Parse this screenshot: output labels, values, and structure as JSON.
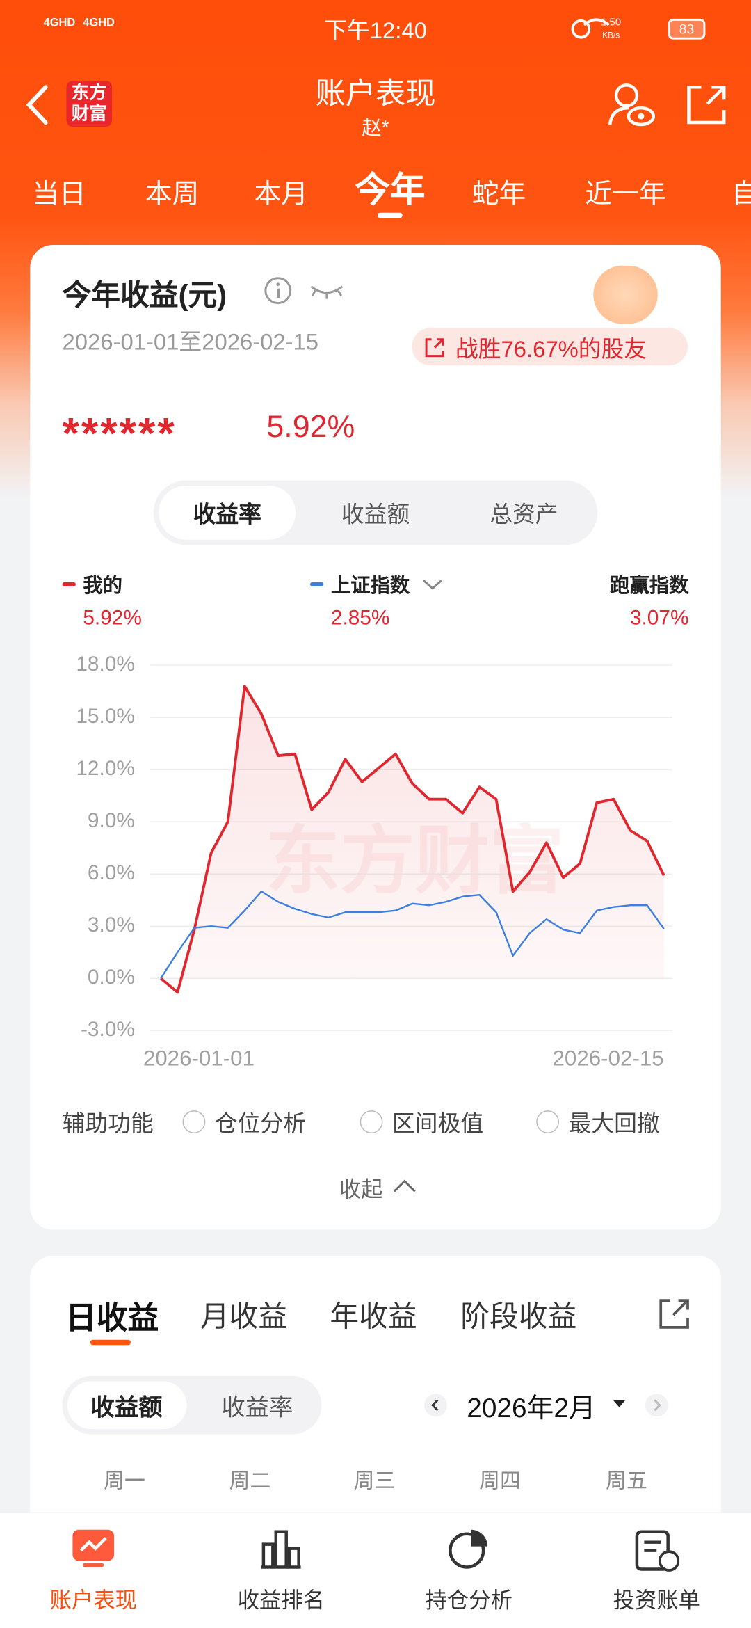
{
  "status_bar": {
    "network": [
      "4GHD",
      "4GHD"
    ],
    "time": "下午12:40",
    "speed": "1.50",
    "speed_unit": "KB/s",
    "battery": "83"
  },
  "header": {
    "logo": "东方财富",
    "title": "账户表现",
    "subtitle": "赵*"
  },
  "period_tabs": [
    "当日",
    "本周",
    "本月",
    "今年",
    "蛇年",
    "近一年",
    "自"
  ],
  "summary": {
    "title": "今年收益(元)",
    "date_range": "2026-01-01至2026-02-15",
    "badge": "战胜76.67%的股友",
    "amount": "******",
    "rate": "5.92%"
  },
  "metric_tabs": [
    "收益率",
    "收益额",
    "总资产"
  ],
  "chart_data": {
    "type": "line",
    "watermark": "东方财富",
    "categories": [
      "2026-01-01",
      null,
      null,
      null,
      null,
      null,
      null,
      null,
      null,
      null,
      null,
      null,
      null,
      null,
      null,
      null,
      null,
      null,
      null,
      null,
      null,
      null,
      null,
      null,
      null,
      null,
      null,
      null,
      null,
      null,
      "2026-02-15"
    ],
    "series": [
      {
        "name": "我的",
        "color": "#e0262f",
        "legend_value": "5.92%",
        "values": [
          0.0,
          -0.8,
          2.8,
          7.2,
          9.0,
          16.8,
          15.2,
          12.8,
          12.9,
          9.7,
          10.7,
          12.6,
          11.3,
          12.1,
          12.9,
          11.2,
          10.3,
          10.3,
          9.5,
          11.0,
          10.3,
          5.0,
          6.1,
          7.8,
          5.8,
          6.6,
          10.1,
          10.3,
          8.5,
          7.9,
          5.92
        ]
      },
      {
        "name": "上证指数",
        "color": "#3b7fe0",
        "legend_value": "2.85%",
        "values": [
          0.0,
          1.5,
          2.9,
          3.0,
          2.9,
          3.9,
          5.0,
          4.4,
          4.0,
          3.7,
          3.5,
          3.8,
          3.8,
          3.8,
          3.9,
          4.3,
          4.2,
          4.4,
          4.7,
          4.8,
          3.8,
          1.3,
          2.6,
          3.4,
          2.8,
          2.6,
          3.9,
          4.1,
          4.2,
          4.2,
          2.85
        ]
      }
    ],
    "outperform": {
      "name": "跑赢指数",
      "legend_value": "3.07%"
    },
    "ylim": [
      -3,
      18
    ],
    "yticks": [
      {
        "value": 18,
        "label": "18.0%"
      },
      {
        "value": 15,
        "label": "15.0%"
      },
      {
        "value": 12,
        "label": "12.0%"
      },
      {
        "value": 9,
        "label": "9.0%"
      },
      {
        "value": 6,
        "label": "6.0%"
      },
      {
        "value": 3,
        "label": "3.0%"
      },
      {
        "value": 0,
        "label": "0.0%"
      },
      {
        "value": -3,
        "label": "-3.0%"
      }
    ],
    "grid": true
  },
  "tools": {
    "label": "辅助功能",
    "options": [
      "仓位分析",
      "区间极值",
      "最大回撤"
    ]
  },
  "collapse": "收起",
  "earnings": {
    "tabs": [
      "日收益",
      "月收益",
      "年收益",
      "阶段收益"
    ],
    "modes": [
      "收益额",
      "收益率"
    ],
    "month": "2026年2月",
    "weekdays": [
      "周一",
      "周二",
      "周三",
      "周四",
      "周五"
    ]
  },
  "bottom_nav": [
    "账户表现",
    "收益排名",
    "持仓分析",
    "投资账单"
  ]
}
